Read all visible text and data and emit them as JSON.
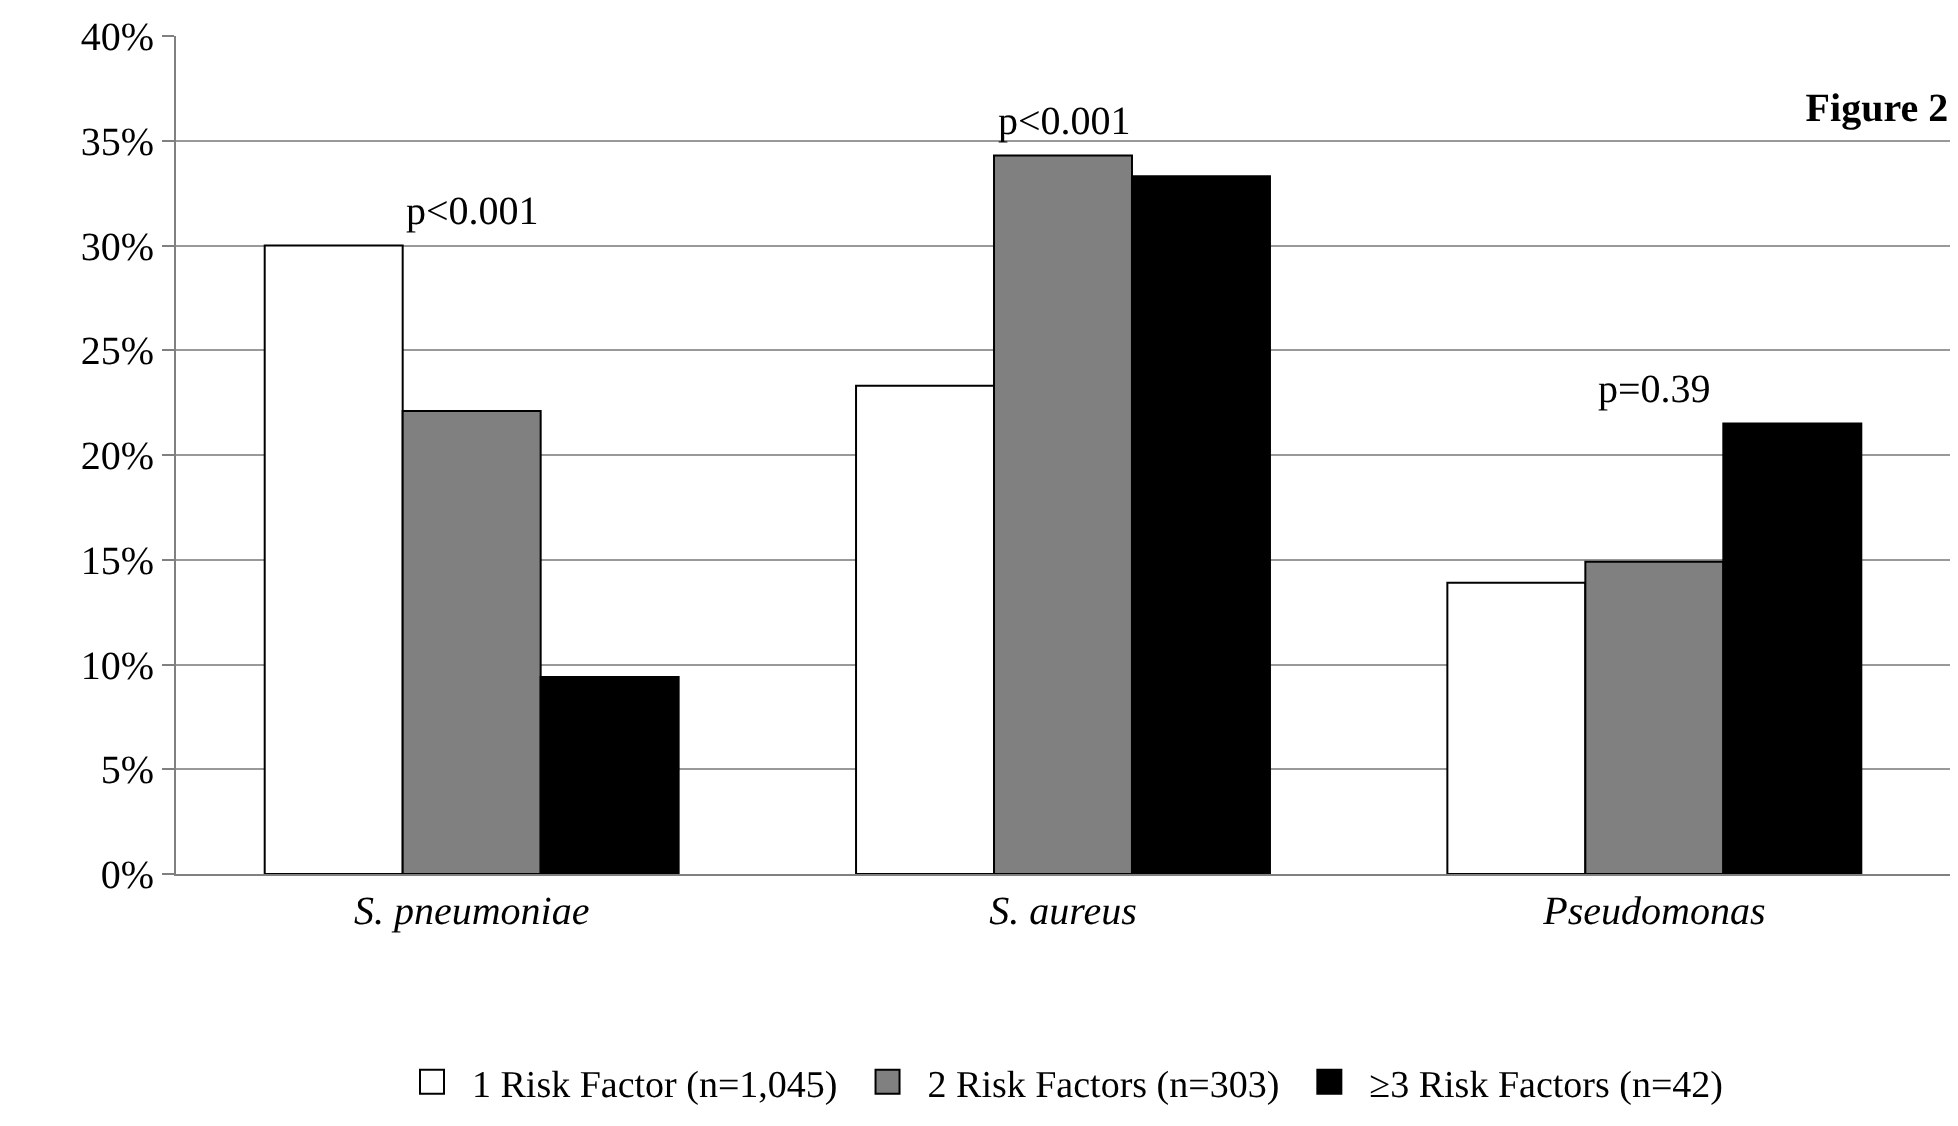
{
  "chart_data": {
    "type": "bar",
    "title": "Figure 2",
    "categories": [
      "S. pneumoniae",
      "S. aureus",
      "Pseudomonas"
    ],
    "series": [
      {
        "name": "1 Risk Factor (n=1,045)",
        "color": "#ffffff",
        "values": [
          30.0,
          23.3,
          13.9
        ]
      },
      {
        "name": "2 Risk Factors (n=303)",
        "color": "#808080",
        "values": [
          22.1,
          34.3,
          14.9
        ]
      },
      {
        "name": "≥3 Risk Factors (n=42)",
        "color": "#000000",
        "values": [
          9.4,
          33.3,
          21.5
        ]
      }
    ],
    "ylim": [
      0,
      40
    ],
    "yticks": [
      {
        "value": 0,
        "label": "0%"
      },
      {
        "value": 5,
        "label": "5%"
      },
      {
        "value": 10,
        "label": "10%"
      },
      {
        "value": 15,
        "label": "15%"
      },
      {
        "value": 20,
        "label": "20%"
      },
      {
        "value": 25,
        "label": "25%"
      },
      {
        "value": 30,
        "label": "30%"
      },
      {
        "value": 35,
        "label": "35%"
      },
      {
        "value": 40,
        "label": "40%"
      }
    ],
    "grid": "y",
    "legend": "bottom",
    "annotations": [
      "p<0.001",
      "p<0.001",
      "p=0.39"
    ]
  }
}
